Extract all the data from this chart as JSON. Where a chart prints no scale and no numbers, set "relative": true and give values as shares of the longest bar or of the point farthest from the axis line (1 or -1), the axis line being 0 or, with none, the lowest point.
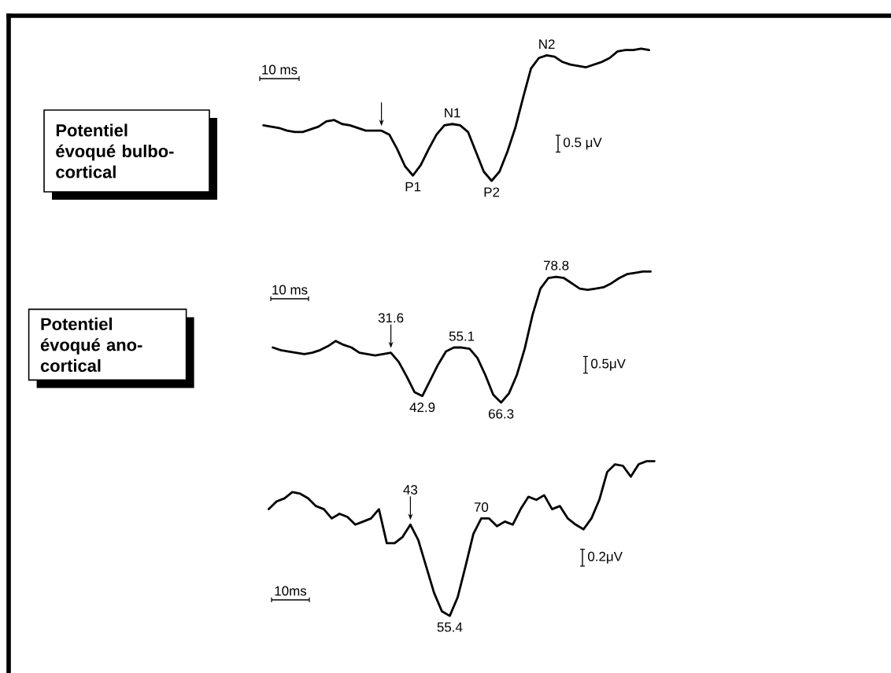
{
  "chart_data": [
    {
      "type": "line",
      "relative": true,
      "categories": [
        null,
        null,
        null,
        null,
        null,
        null,
        null,
        null,
        null,
        null,
        null,
        null,
        null,
        null,
        null,
        null,
        null,
        null,
        null,
        null,
        null,
        null,
        null,
        null,
        null,
        null,
        null,
        null,
        null,
        null,
        null,
        null,
        null,
        null,
        null,
        null,
        null,
        null,
        null,
        null,
        null,
        null,
        null,
        null,
        null,
        null,
        null,
        null,
        null,
        null
      ],
      "series": [
        {
          "name": "Potentiel évoqué bulbo-cortical",
          "color": "#000000",
          "values": [
            0.42,
            0.41,
            0.4,
            0.38,
            0.37,
            0.37,
            0.39,
            0.41,
            0.45,
            0.46,
            0.43,
            0.42,
            0.4,
            0.38,
            0.38,
            0.38,
            0.35,
            0.24,
            0.11,
            0.04,
            0.12,
            0.24,
            0.35,
            0.42,
            0.43,
            0.42,
            0.37,
            0.22,
            0.07,
            0.0,
            0.07,
            0.22,
            0.4,
            0.63,
            0.85,
            0.93,
            0.95,
            0.94,
            0.9,
            0.88,
            0.87,
            0.86,
            0.88,
            0.9,
            0.93,
            0.98,
            0.99,
            0.99,
            1.0,
            0.99
          ]
        }
      ],
      "annotations": [
        "10 ms",
        "0.5 μV",
        "P1",
        "N1",
        "P2",
        "N2"
      ]
    },
    {
      "type": "line",
      "relative": true,
      "categories": [
        null,
        null,
        null,
        null,
        null,
        null,
        null,
        null,
        null,
        null,
        null,
        null,
        null,
        null,
        null,
        null,
        null,
        null,
        null,
        null,
        null,
        null,
        null,
        null,
        null,
        null,
        null,
        null,
        null,
        null,
        null,
        null,
        null,
        null,
        null,
        null,
        null,
        null,
        null,
        null,
        null,
        null,
        null,
        null,
        null,
        null,
        null,
        null,
        null
      ],
      "series": [
        {
          "name": "Potentiel évoqué ano-cortical",
          "color": "#000000",
          "values": [
            0.42,
            0.4,
            0.39,
            0.38,
            0.37,
            0.38,
            0.4,
            0.43,
            0.47,
            0.44,
            0.42,
            0.38,
            0.37,
            0.36,
            0.37,
            0.38,
            0.31,
            0.2,
            0.08,
            0.05,
            0.17,
            0.29,
            0.39,
            0.42,
            0.42,
            0.41,
            0.34,
            0.21,
            0.06,
            0.0,
            0.07,
            0.21,
            0.41,
            0.67,
            0.87,
            0.95,
            0.96,
            0.95,
            0.91,
            0.87,
            0.86,
            0.87,
            0.88,
            0.91,
            0.95,
            0.98,
            0.99,
            1.0,
            1.0
          ]
        }
      ],
      "annotations": [
        "10 ms",
        "0.5μV",
        "31.6",
        "42.9",
        "55.1",
        "66.3",
        "78.8"
      ]
    },
    {
      "type": "line",
      "relative": true,
      "color": "#000000",
      "categories": [
        null,
        null,
        null,
        null,
        null,
        null,
        null,
        null,
        null,
        null,
        null,
        null,
        null,
        null,
        null,
        null,
        null,
        null,
        null,
        null,
        null,
        null,
        null,
        null,
        null,
        null,
        null,
        null,
        null,
        null,
        null,
        null,
        null,
        null,
        null,
        null,
        null,
        null,
        null,
        null,
        null,
        null,
        null,
        null,
        null,
        null,
        null,
        null,
        null,
        null
      ],
      "values": [
        0.69,
        0.74,
        0.76,
        0.8,
        0.79,
        0.76,
        0.71,
        0.69,
        0.63,
        0.66,
        0.64,
        0.59,
        0.61,
        0.63,
        0.69,
        0.47,
        0.47,
        0.51,
        0.59,
        0.49,
        0.32,
        0.15,
        0.03,
        0.0,
        0.12,
        0.32,
        0.53,
        0.63,
        0.63,
        0.58,
        0.61,
        0.59,
        0.69,
        0.77,
        0.75,
        0.78,
        0.69,
        0.71,
        0.63,
        0.59,
        0.56,
        0.63,
        0.75,
        0.93,
        0.98,
        0.97,
        0.9,
        0.98,
        1.0,
        1.0
      ],
      "annotations": [
        "10ms",
        "0.2μV",
        "43",
        "55.4",
        "70"
      ]
    }
  ]
}
